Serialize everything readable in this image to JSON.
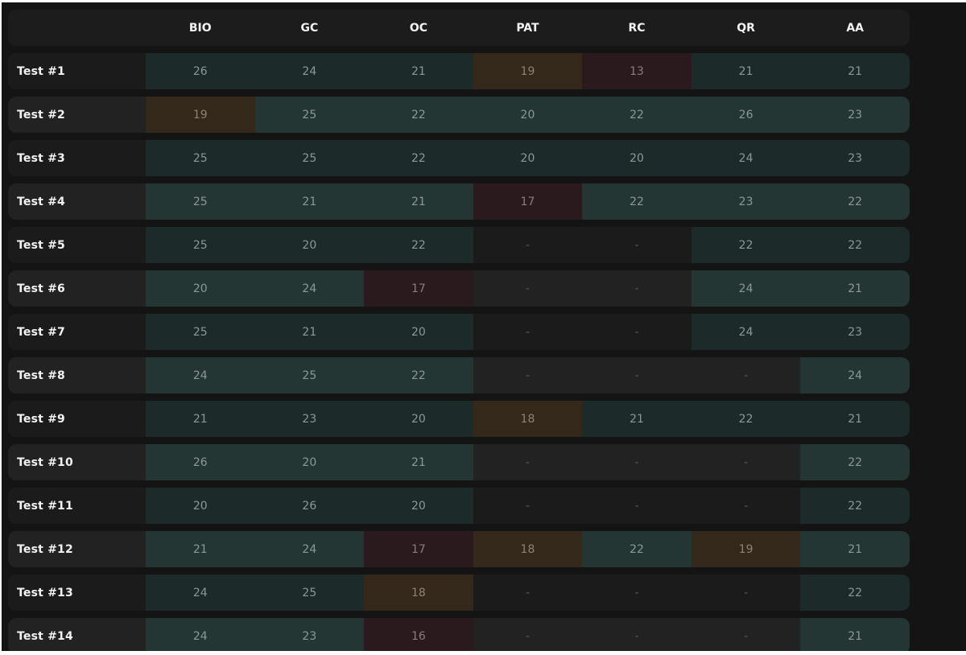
{
  "columns": [
    "BIO",
    "GC",
    "OC",
    "PAT",
    "RC",
    "QR",
    "AA"
  ],
  "colors": {
    "background": "#141414",
    "good_cell": "#233634",
    "warn_cell": "#34281a",
    "bad_cell": "#2a1a1e"
  },
  "rows": [
    {
      "label": "Test #1",
      "scores": [
        "26",
        "24",
        "21",
        "19",
        "13",
        "21",
        "21"
      ],
      "status": [
        "good",
        "good",
        "good",
        "warn",
        "bad",
        "good",
        "good"
      ]
    },
    {
      "label": "Test #2",
      "scores": [
        "19",
        "25",
        "22",
        "20",
        "22",
        "26",
        "23"
      ],
      "status": [
        "warn",
        "good",
        "good",
        "good",
        "good",
        "good",
        "good"
      ]
    },
    {
      "label": "Test #3",
      "scores": [
        "25",
        "25",
        "22",
        "20",
        "20",
        "24",
        "23"
      ],
      "status": [
        "good",
        "good",
        "good",
        "good",
        "good",
        "good",
        "good"
      ]
    },
    {
      "label": "Test #4",
      "scores": [
        "25",
        "21",
        "21",
        "17",
        "22",
        "23",
        "22"
      ],
      "status": [
        "good",
        "good",
        "good",
        "bad",
        "good",
        "good",
        "good"
      ]
    },
    {
      "label": "Test #5",
      "scores": [
        "25",
        "20",
        "22",
        "-",
        "-",
        "22",
        "22"
      ],
      "status": [
        "good",
        "good",
        "good",
        "na",
        "na",
        "good",
        "good"
      ]
    },
    {
      "label": "Test #6",
      "scores": [
        "20",
        "24",
        "17",
        "-",
        "-",
        "24",
        "21"
      ],
      "status": [
        "good",
        "good",
        "bad",
        "na",
        "na",
        "good",
        "good"
      ]
    },
    {
      "label": "Test #7",
      "scores": [
        "25",
        "21",
        "20",
        "-",
        "-",
        "24",
        "23"
      ],
      "status": [
        "good",
        "good",
        "good",
        "na",
        "na",
        "good",
        "good"
      ]
    },
    {
      "label": "Test #8",
      "scores": [
        "24",
        "25",
        "22",
        "-",
        "-",
        "-",
        "24"
      ],
      "status": [
        "good",
        "good",
        "good",
        "na",
        "na",
        "na",
        "good"
      ]
    },
    {
      "label": "Test #9",
      "scores": [
        "21",
        "23",
        "20",
        "18",
        "21",
        "22",
        "21"
      ],
      "status": [
        "good",
        "good",
        "good",
        "warn",
        "good",
        "good",
        "good"
      ]
    },
    {
      "label": "Test #10",
      "scores": [
        "26",
        "20",
        "21",
        "-",
        "-",
        "-",
        "22"
      ],
      "status": [
        "good",
        "good",
        "good",
        "na",
        "na",
        "na",
        "good"
      ]
    },
    {
      "label": "Test #11",
      "scores": [
        "20",
        "26",
        "20",
        "-",
        "-",
        "-",
        "22"
      ],
      "status": [
        "good",
        "good",
        "good",
        "na",
        "na",
        "na",
        "good"
      ]
    },
    {
      "label": "Test #12",
      "scores": [
        "21",
        "24",
        "17",
        "18",
        "22",
        "19",
        "21"
      ],
      "status": [
        "good",
        "good",
        "bad",
        "warn",
        "good",
        "warn",
        "good"
      ]
    },
    {
      "label": "Test #13",
      "scores": [
        "24",
        "25",
        "18",
        "-",
        "-",
        "-",
        "22"
      ],
      "status": [
        "good",
        "good",
        "warn",
        "na",
        "na",
        "na",
        "good"
      ]
    },
    {
      "label": "Test #14",
      "scores": [
        "24",
        "23",
        "16",
        "-",
        "-",
        "-",
        "21"
      ],
      "status": [
        "good",
        "good",
        "bad",
        "na",
        "na",
        "na",
        "good"
      ]
    }
  ]
}
